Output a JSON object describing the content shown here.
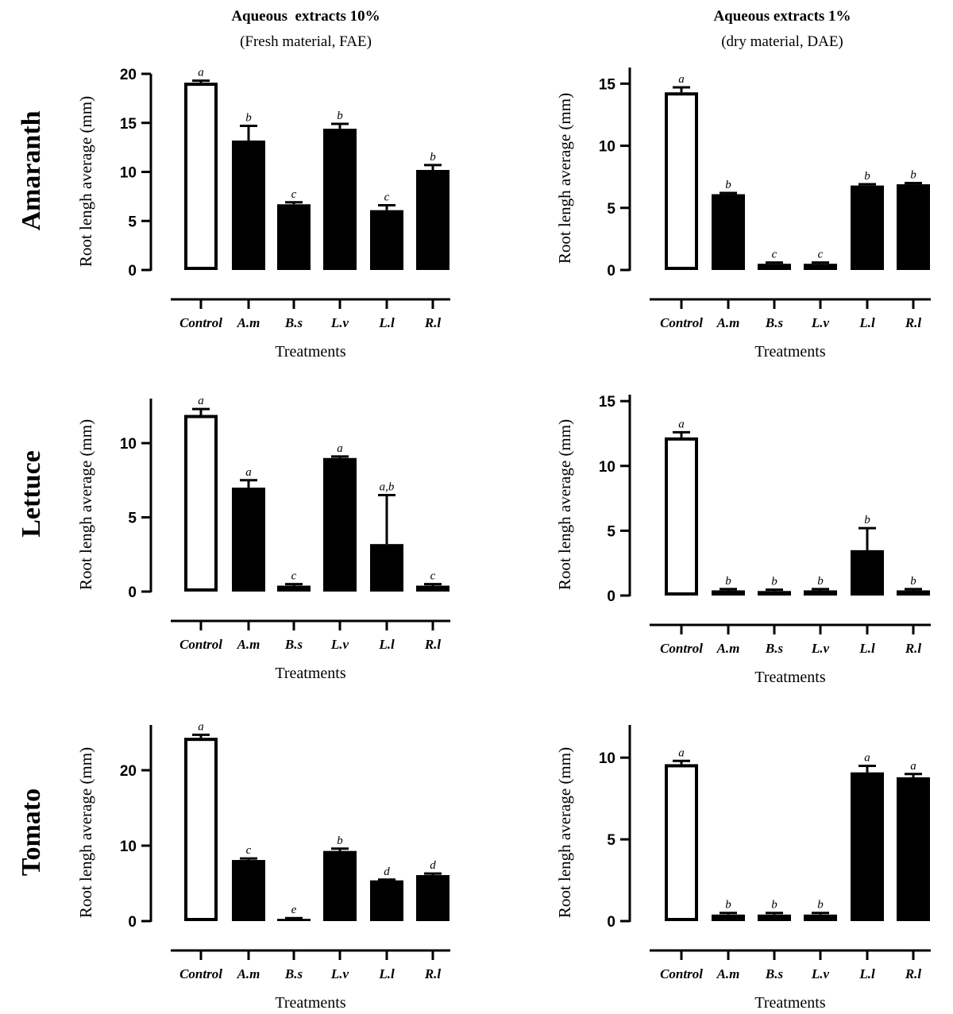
{
  "columns": [
    {
      "title": "Aqueous  extracts 10%",
      "subtitle": "(Fresh material, FAE)"
    },
    {
      "title": "Aqueous extracts 1%",
      "subtitle": "(dry material, DAE)"
    }
  ],
  "rows": [
    "Amaranth",
    "Lettuce",
    "Tomato"
  ],
  "colors": {
    "bar_fill": "#000000",
    "control_fill": "#ffffff"
  },
  "chart_data": [
    {
      "type": "bar",
      "row": "Amaranth",
      "column": "FAE",
      "xlabel": "Treatments",
      "ylabel": "Root lengh average (mm)",
      "categories": [
        "Control",
        "A.m",
        "B.s",
        "L.v",
        "L.l",
        "R.l"
      ],
      "ylim": [
        0,
        20
      ],
      "yticks": [
        0,
        5,
        10,
        15,
        20
      ],
      "values": [
        19.1,
        13.2,
        6.7,
        14.4,
        6.1,
        10.2
      ],
      "error_upper": [
        19.3,
        14.7,
        6.9,
        14.9,
        6.6,
        10.7
      ],
      "letters": [
        "a",
        "b",
        "c",
        "b",
        "c",
        "b"
      ]
    },
    {
      "type": "bar",
      "row": "Amaranth",
      "column": "DAE",
      "xlabel": "Treatments",
      "ylabel": "Root lengh average (mm)",
      "categories": [
        "Control",
        "A.m",
        "B.s",
        "L.v",
        "L.l",
        "R.l"
      ],
      "ylim": [
        0,
        16.3
      ],
      "yticks": [
        0,
        5,
        10,
        15
      ],
      "values": [
        14.3,
        6.1,
        0.5,
        0.5,
        6.8,
        6.9
      ],
      "error_upper": [
        14.7,
        6.2,
        0.6,
        0.6,
        6.9,
        7.0
      ],
      "letters": [
        "a",
        "b",
        "c",
        "c",
        "b",
        "b"
      ]
    },
    {
      "type": "bar",
      "row": "Lettuce",
      "column": "FAE",
      "xlabel": "Treatments",
      "ylabel": "Root lengh average (mm)",
      "categories": [
        "Control",
        "A.m",
        "B.s",
        "L.v",
        "L.l",
        "R.l"
      ],
      "ylim": [
        0,
        13
      ],
      "yticks": [
        0,
        5,
        10
      ],
      "values": [
        11.9,
        7.0,
        0.4,
        9.0,
        3.2,
        0.4
      ],
      "error_upper": [
        12.3,
        7.5,
        0.5,
        9.1,
        6.5,
        0.5
      ],
      "letters": [
        "a",
        "a",
        "c",
        "a",
        "a,b",
        "c"
      ]
    },
    {
      "type": "bar",
      "row": "Lettuce",
      "column": "DAE",
      "xlabel": "Treatments",
      "ylabel": "Root lengh average (mm)",
      "categories": [
        "Control",
        "A.m",
        "B.s",
        "L.v",
        "L.l",
        "R.l"
      ],
      "ylim": [
        0,
        15.5
      ],
      "yticks": [
        0,
        5,
        10,
        15
      ],
      "values": [
        12.2,
        0.4,
        0.35,
        0.4,
        3.5,
        0.4
      ],
      "error_upper": [
        12.6,
        0.5,
        0.45,
        0.5,
        5.2,
        0.5
      ],
      "letters": [
        "a",
        "b",
        "b",
        "b",
        "b",
        "b"
      ]
    },
    {
      "type": "bar",
      "row": "Tomato",
      "column": "FAE",
      "xlabel": "Treatments",
      "ylabel": "Root lengh average (mm)",
      "categories": [
        "Control",
        "A.m",
        "B.s",
        "L.v",
        "L.l",
        "R.l"
      ],
      "ylim": [
        0,
        26
      ],
      "yticks": [
        0,
        10,
        20
      ],
      "values": [
        24.3,
        8.1,
        0.3,
        9.3,
        5.4,
        6.1
      ],
      "error_upper": [
        24.7,
        8.3,
        0.4,
        9.6,
        5.5,
        6.3
      ],
      "letters": [
        "a",
        "c",
        "e",
        "b",
        "d",
        "d"
      ]
    },
    {
      "type": "bar",
      "row": "Tomato",
      "column": "DAE",
      "xlabel": "Treatments",
      "ylabel": "Root lengh average (mm)",
      "categories": [
        "Control",
        "A.m",
        "B.s",
        "L.v",
        "L.l",
        "R.l"
      ],
      "ylim": [
        0,
        12
      ],
      "yticks": [
        0,
        5,
        10
      ],
      "values": [
        9.6,
        0.4,
        0.4,
        0.4,
        9.1,
        8.8
      ],
      "error_upper": [
        9.8,
        0.5,
        0.5,
        0.5,
        9.5,
        9.0
      ],
      "letters": [
        "a",
        "b",
        "b",
        "b",
        "a",
        "a"
      ]
    }
  ]
}
